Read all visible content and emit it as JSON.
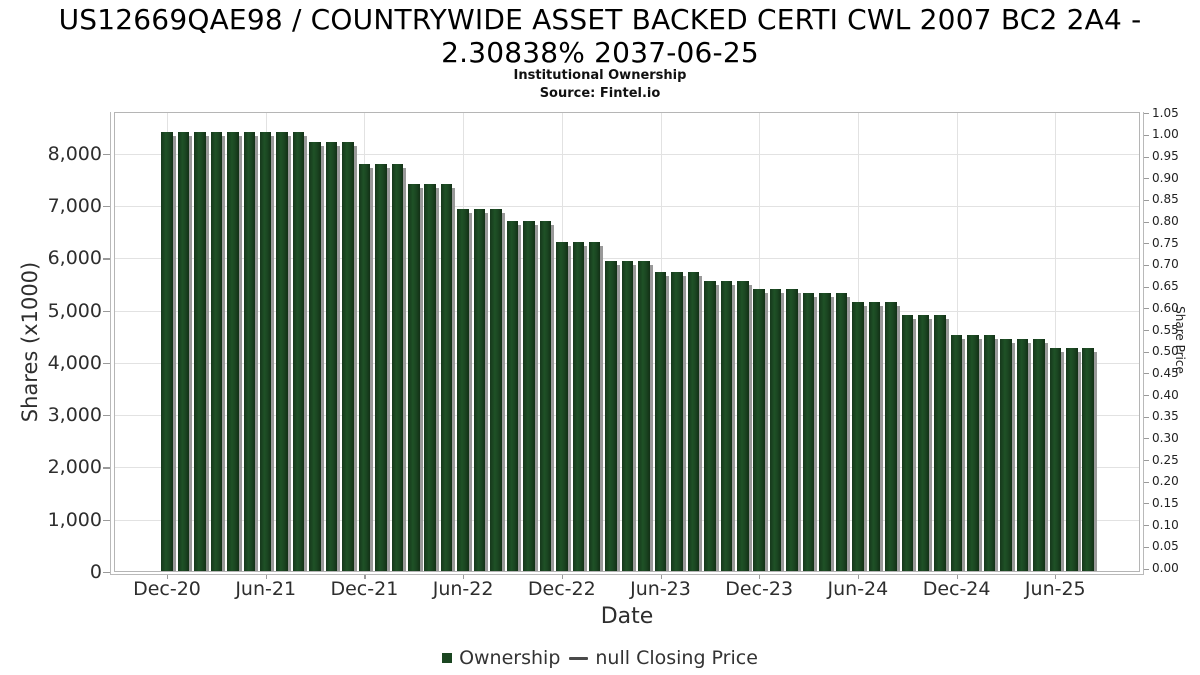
{
  "header": {
    "title_line1": "US12669QAE98 / COUNTRYWIDE ASSET BACKED CERTI CWL 2007 BC2 2A4 -",
    "title_line2": "2.30838% 2037-06-25",
    "subtitle": "Institutional Ownership",
    "source": "Source: Fintel.io"
  },
  "colors": {
    "bar": "#1B4621",
    "bar_shadow": "#909090",
    "grid": "#e2e2e2",
    "axis": "#b9b9b9",
    "text": "#2e2e2e",
    "price_marker": "#4a4a4a"
  },
  "chart_data": {
    "type": "bar",
    "title": "US12669QAE98 / COUNTRYWIDE ASSET BACKED CERTI CWL 2007 BC2 2A4 - 2.30838% 2037-06-25",
    "subtitle": "Institutional Ownership",
    "source": "Source: Fintel.io",
    "xlabel": "Date",
    "ylabel": "Shares (x1000)",
    "ylabel_right": "Share Price",
    "ylim": [
      0,
      8800
    ],
    "ylim_right": [
      0,
      1.05
    ],
    "grid": true,
    "legend_position": "bottom",
    "yticks": [
      {
        "value": 0,
        "label": "0"
      },
      {
        "value": 1000,
        "label": "1,000"
      },
      {
        "value": 2000,
        "label": "2,000"
      },
      {
        "value": 3000,
        "label": "3,000"
      },
      {
        "value": 4000,
        "label": "4,000"
      },
      {
        "value": 5000,
        "label": "5,000"
      },
      {
        "value": 6000,
        "label": "6,000"
      },
      {
        "value": 7000,
        "label": "7,000"
      },
      {
        "value": 8000,
        "label": "8,000"
      }
    ],
    "yticks_right": [
      "0.00",
      "0.05",
      "0.10",
      "0.15",
      "0.20",
      "0.25",
      "0.30",
      "0.35",
      "0.40",
      "0.45",
      "0.50",
      "0.55",
      "0.60",
      "0.65",
      "0.70",
      "0.75",
      "0.80",
      "0.85",
      "0.90",
      "0.95",
      "1.00",
      "1.05"
    ],
    "x_tick_labels": [
      "Dec-20",
      "Jun-21",
      "Dec-21",
      "Jun-22",
      "Dec-22",
      "Jun-23",
      "Dec-23",
      "Jun-24",
      "Dec-24",
      "Jun-25"
    ],
    "categories": [
      "Dec-20",
      "Jan-21",
      "Feb-21",
      "Mar-21",
      "Apr-21",
      "May-21",
      "Jun-21",
      "Jul-21",
      "Aug-21",
      "Sep-21",
      "Oct-21",
      "Nov-21",
      "Dec-21",
      "Jan-22",
      "Feb-22",
      "Mar-22",
      "Apr-22",
      "May-22",
      "Jun-22",
      "Jul-22",
      "Aug-22",
      "Sep-22",
      "Oct-22",
      "Nov-22",
      "Dec-22",
      "Jan-23",
      "Feb-23",
      "Mar-23",
      "Apr-23",
      "May-23",
      "Jun-23",
      "Jul-23",
      "Aug-23",
      "Sep-23",
      "Oct-23",
      "Nov-23",
      "Dec-23",
      "Jan-24",
      "Feb-24",
      "Mar-24",
      "Apr-24",
      "May-24",
      "Jun-24",
      "Jul-24",
      "Aug-24",
      "Sep-24",
      "Oct-24",
      "Nov-24",
      "Dec-24",
      "Jan-25",
      "Feb-25",
      "Mar-25",
      "Apr-25",
      "May-25",
      "Jun-25",
      "Jul-25",
      "Aug-25"
    ],
    "series": [
      {
        "name": "Ownership",
        "color": "#1B4621",
        "values": [
          8420,
          8420,
          8420,
          8420,
          8420,
          8420,
          8420,
          8420,
          8420,
          8220,
          8220,
          8220,
          7810,
          7810,
          7810,
          7420,
          7420,
          7420,
          6950,
          6950,
          6950,
          6710,
          6710,
          6710,
          6320,
          6320,
          6320,
          5950,
          5950,
          5950,
          5740,
          5740,
          5740,
          5560,
          5560,
          5560,
          5420,
          5420,
          5420,
          5330,
          5330,
          5330,
          5170,
          5170,
          5170,
          4910,
          4910,
          4910,
          4530,
          4530,
          4530,
          4460,
          4460,
          4460,
          4290,
          4290,
          4290
        ]
      }
    ],
    "price_series": {
      "name": "null Closing Price",
      "values": []
    },
    "legend": [
      {
        "marker": "square",
        "color": "#1B4621",
        "label": "Ownership"
      },
      {
        "marker": "line",
        "color": "#4a4a4a",
        "label": "null Closing Price"
      }
    ]
  }
}
